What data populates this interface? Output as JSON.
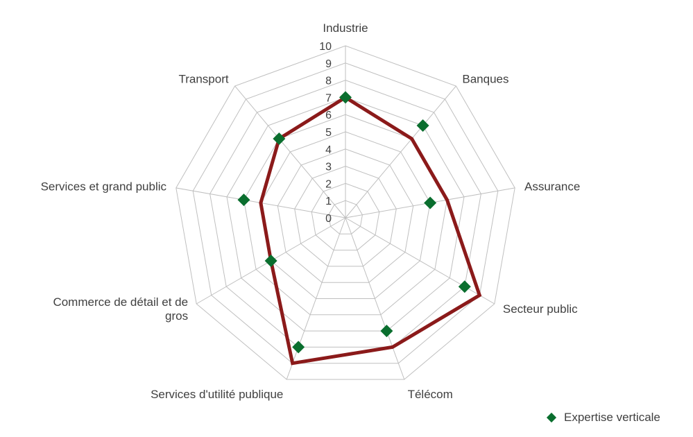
{
  "chart_data": {
    "type": "radar",
    "title": "",
    "categories": [
      "Industrie",
      "Banques",
      "Assurance",
      "Secteur public",
      "Télécom",
      "Services d'utilité publique",
      "Commerce de détail et de gros",
      "Services et grand public",
      "Transport"
    ],
    "rmin": 0,
    "rmax": 10,
    "ticks": [
      "0",
      "1",
      "2",
      "3",
      "4",
      "5",
      "6",
      "7",
      "8",
      "9",
      "10"
    ],
    "grid": true,
    "legend_position": "bottom-right",
    "series": [
      {
        "name": "",
        "kind": "line",
        "color": "#8b1a1a",
        "values": [
          7,
          6,
          6,
          9,
          8,
          9,
          5,
          5,
          6
        ]
      },
      {
        "name": "Expertise verticale",
        "kind": "markers",
        "color": "#0a6e2e",
        "values": [
          7,
          7,
          5,
          8,
          7,
          8,
          5,
          6,
          6
        ]
      }
    ]
  }
}
